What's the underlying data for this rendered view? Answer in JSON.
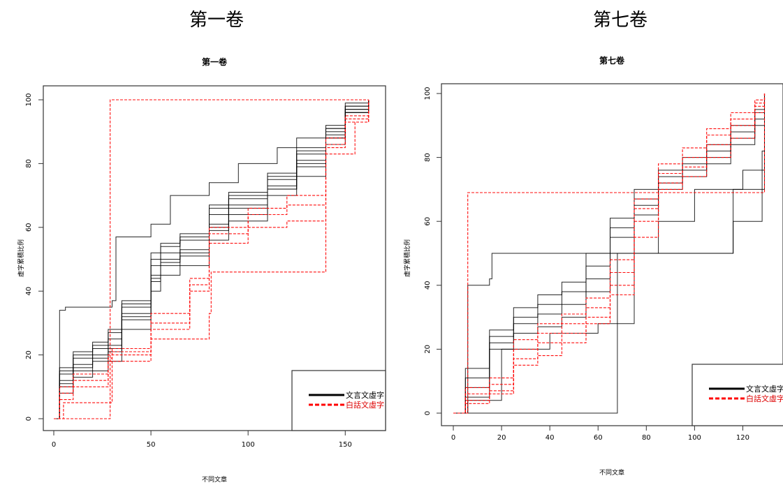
{
  "captions": {
    "left": "第一卷",
    "right": "第七卷"
  },
  "chart_data": [
    {
      "type": "line",
      "title": "第一卷",
      "xlabel": "不同文章",
      "ylabel": "虛字累積比例",
      "xlim": [
        0,
        165
      ],
      "ylim": [
        0,
        100
      ],
      "xticks": [
        "0",
        "50",
        "100",
        "150"
      ],
      "yticks": [
        "0",
        "20",
        "40",
        "60",
        "80",
        "100"
      ],
      "legend": {
        "position": "bottom-right",
        "entries": [
          {
            "label": "文言文虛字",
            "color": "#000000",
            "dash": "solid"
          },
          {
            "label": "白話文虛字",
            "color": "#ff0000",
            "dash": "dashed"
          }
        ]
      },
      "series": [
        {
          "group": "文言文虛字",
          "x": [
            0,
            3,
            6,
            30,
            32,
            50,
            60,
            80,
            95,
            115,
            125,
            140,
            150,
            162
          ],
          "y": [
            0,
            34,
            35,
            37,
            57,
            61,
            70,
            74,
            80,
            85,
            88,
            91,
            96,
            100
          ]
        },
        {
          "group": "文言文虛字",
          "x": [
            0,
            3,
            10,
            20,
            28,
            35,
            50,
            55,
            65,
            80,
            90,
            110,
            125,
            140,
            150,
            162
          ],
          "y": [
            0,
            8,
            13,
            15,
            18,
            28,
            40,
            45,
            48,
            56,
            62,
            70,
            76,
            86,
            96,
            100
          ]
        },
        {
          "group": "文言文虛字",
          "x": [
            0,
            3,
            10,
            20,
            28,
            35,
            50,
            55,
            65,
            80,
            90,
            110,
            125,
            140,
            150,
            162
          ],
          "y": [
            0,
            10,
            15,
            18,
            21,
            31,
            43,
            48,
            51,
            59,
            64,
            72,
            79,
            88,
            97,
            100
          ]
        },
        {
          "group": "文言文虛字",
          "x": [
            0,
            3,
            10,
            20,
            28,
            35,
            50,
            55,
            65,
            80,
            90,
            110,
            125,
            140,
            150,
            162
          ],
          "y": [
            0,
            12,
            17,
            20,
            23,
            33,
            45,
            50,
            53,
            61,
            67,
            73,
            81,
            89,
            97,
            100
          ]
        },
        {
          "group": "文言文虛字",
          "x": [
            0,
            3,
            10,
            20,
            28,
            35,
            50,
            55,
            65,
            80,
            90,
            110,
            125,
            140,
            150,
            162
          ],
          "y": [
            0,
            14,
            19,
            22,
            25,
            35,
            48,
            52,
            56,
            64,
            69,
            75,
            83,
            90,
            98,
            100
          ]
        },
        {
          "group": "文言文虛字",
          "x": [
            0,
            3,
            10,
            20,
            28,
            35,
            50,
            55,
            65,
            80,
            90,
            110,
            125,
            140,
            150,
            162
          ],
          "y": [
            0,
            15,
            20,
            23,
            27,
            36,
            50,
            54,
            57,
            66,
            70,
            76,
            84,
            91,
            98,
            100
          ]
        },
        {
          "group": "文言文虛字",
          "x": [
            0,
            3,
            10,
            20,
            28,
            35,
            50,
            55,
            65,
            80,
            90,
            110,
            125,
            140,
            150,
            162
          ],
          "y": [
            0,
            11,
            16,
            19,
            22,
            32,
            44,
            49,
            52,
            60,
            66,
            72,
            80,
            88,
            96,
            100
          ]
        },
        {
          "group": "文言文虛字",
          "x": [
            0,
            3,
            10,
            20,
            28,
            35,
            50,
            55,
            65,
            80,
            90,
            110,
            125,
            140,
            150,
            162
          ],
          "y": [
            0,
            16,
            21,
            24,
            28,
            37,
            52,
            55,
            58,
            67,
            71,
            77,
            85,
            92,
            99,
            100
          ]
        },
        {
          "group": "白話文虛字",
          "x": [
            0,
            5,
            28,
            29,
            139,
            140,
            162
          ],
          "y": [
            0,
            0,
            0,
            100,
            100,
            100,
            100
          ]
        },
        {
          "group": "白話文虛字",
          "x": [
            0,
            5,
            29,
            30,
            50,
            80,
            81,
            139,
            140,
            155,
            162
          ],
          "y": [
            0,
            5,
            5,
            18,
            25,
            33,
            46,
            46,
            83,
            93,
            100
          ]
        },
        {
          "group": "白話文虛字",
          "x": [
            0,
            3,
            10,
            28,
            30,
            50,
            70,
            80,
            100,
            120,
            140,
            150,
            162
          ],
          "y": [
            0,
            6,
            10,
            18,
            20,
            28,
            40,
            55,
            60,
            62,
            85,
            93,
            100
          ]
        },
        {
          "group": "白話文虛字",
          "x": [
            0,
            3,
            10,
            28,
            30,
            50,
            70,
            80,
            100,
            120,
            140,
            150,
            162
          ],
          "y": [
            0,
            8,
            12,
            19,
            21,
            30,
            42,
            58,
            64,
            67,
            86,
            94,
            100
          ]
        },
        {
          "group": "白話文虛字",
          "x": [
            0,
            3,
            10,
            28,
            30,
            50,
            70,
            80,
            100,
            120,
            140,
            150,
            162
          ],
          "y": [
            0,
            10,
            14,
            20,
            22,
            33,
            44,
            60,
            66,
            70,
            88,
            95,
            100
          ]
        }
      ]
    },
    {
      "type": "line",
      "title": "第七卷",
      "xlabel": "不同文章",
      "ylabel": "虛字累積比例",
      "xlim": [
        0,
        130
      ],
      "ylim": [
        0,
        100
      ],
      "xticks": [
        "0",
        "20",
        "40",
        "60",
        "80",
        "100",
        "120"
      ],
      "yticks": [
        "0",
        "20",
        "40",
        "60",
        "80",
        "100"
      ],
      "legend": {
        "position": "bottom-right",
        "entries": [
          {
            "label": "文言文虛字",
            "color": "#000000",
            "dash": "solid"
          },
          {
            "label": "白話文虛字",
            "color": "#ff0000",
            "dash": "dashed"
          }
        ]
      },
      "series": [
        {
          "group": "文言文虛字",
          "x": [
            0,
            6,
            7,
            67,
            68,
            115,
            116,
            128,
            129
          ],
          "y": [
            0,
            0,
            0,
            0,
            50,
            50,
            60,
            70,
            100
          ]
        },
        {
          "group": "文言文虛字",
          "x": [
            0,
            5,
            6,
            15,
            16,
            115,
            116,
            128,
            129
          ],
          "y": [
            0,
            0,
            40,
            42,
            50,
            50,
            70,
            82,
            100
          ]
        },
        {
          "group": "文言文虛字",
          "x": [
            0,
            5,
            15,
            25,
            35,
            45,
            55,
            65,
            75,
            85,
            95,
            105,
            115,
            125,
            129
          ],
          "y": [
            0,
            5,
            20,
            25,
            27,
            30,
            38,
            50,
            62,
            70,
            74,
            78,
            84,
            90,
            100
          ]
        },
        {
          "group": "文言文虛字",
          "x": [
            0,
            5,
            15,
            25,
            35,
            45,
            55,
            65,
            75,
            85,
            95,
            105,
            115,
            125,
            129
          ],
          "y": [
            0,
            8,
            22,
            28,
            31,
            34,
            42,
            55,
            65,
            72,
            76,
            80,
            86,
            92,
            100
          ]
        },
        {
          "group": "文言文虛字",
          "x": [
            0,
            5,
            15,
            25,
            35,
            45,
            55,
            65,
            75,
            85,
            95,
            105,
            115,
            125,
            129
          ],
          "y": [
            0,
            11,
            24,
            30,
            34,
            38,
            46,
            58,
            67,
            74,
            78,
            82,
            88,
            94,
            100
          ]
        },
        {
          "group": "文言文虛字",
          "x": [
            0,
            5,
            15,
            25,
            35,
            45,
            55,
            65,
            75,
            85,
            95,
            105,
            115,
            125,
            129
          ],
          "y": [
            0,
            14,
            26,
            33,
            37,
            41,
            50,
            61,
            70,
            76,
            80,
            84,
            90,
            95,
            100
          ]
        },
        {
          "group": "文言文虛字",
          "x": [
            0,
            6,
            20,
            40,
            60,
            75,
            85,
            100,
            120,
            129
          ],
          "y": [
            0,
            4,
            20,
            25,
            28,
            50,
            60,
            70,
            76,
            100
          ]
        },
        {
          "group": "白話文虛字",
          "x": [
            0,
            5,
            6,
            7,
            8,
            129
          ],
          "y": [
            0,
            0,
            69,
            69,
            69,
            100
          ]
        },
        {
          "group": "白話文虛字",
          "x": [
            0,
            5,
            15,
            25,
            35,
            45,
            55,
            65,
            75,
            85,
            95,
            105,
            115,
            125,
            129
          ],
          "y": [
            0,
            4,
            7,
            17,
            22,
            25,
            30,
            40,
            60,
            72,
            77,
            84,
            90,
            96,
            100
          ]
        },
        {
          "group": "白話文虛字",
          "x": [
            0,
            5,
            15,
            25,
            35,
            45,
            55,
            65,
            75,
            85,
            95,
            105,
            115,
            125,
            129
          ],
          "y": [
            0,
            6,
            9,
            20,
            25,
            28,
            33,
            44,
            64,
            75,
            80,
            87,
            92,
            97,
            100
          ]
        },
        {
          "group": "白話文虛字",
          "x": [
            0,
            5,
            15,
            25,
            35,
            45,
            55,
            65,
            75,
            85,
            95,
            105,
            115,
            125,
            129
          ],
          "y": [
            0,
            8,
            11,
            23,
            28,
            31,
            36,
            48,
            67,
            78,
            83,
            89,
            94,
            98,
            100
          ]
        },
        {
          "group": "白話文虛字",
          "x": [
            0,
            5,
            15,
            25,
            35,
            45,
            55,
            65,
            75,
            85,
            95,
            105,
            115,
            125,
            129
          ],
          "y": [
            0,
            3,
            6,
            15,
            18,
            22,
            28,
            37,
            55,
            70,
            74,
            80,
            86,
            94,
            100
          ]
        }
      ]
    }
  ]
}
